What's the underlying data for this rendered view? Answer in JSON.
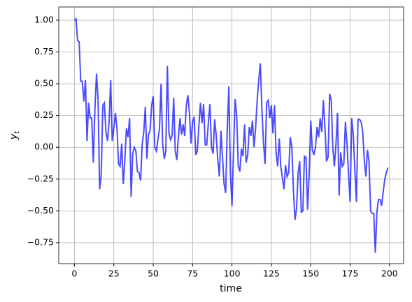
{
  "chart_data": {
    "type": "line",
    "xlabel": "time",
    "ylabel": "y_t",
    "x": [
      0,
      1,
      2,
      3,
      4,
      5,
      6,
      7,
      8,
      9,
      10,
      11,
      12,
      13,
      14,
      15,
      16,
      17,
      18,
      19,
      20,
      21,
      22,
      23,
      24,
      25,
      26,
      27,
      28,
      29,
      30,
      31,
      32,
      33,
      34,
      35,
      36,
      37,
      38,
      39,
      40,
      41,
      42,
      43,
      44,
      45,
      46,
      47,
      48,
      49,
      50,
      51,
      52,
      53,
      54,
      55,
      56,
      57,
      58,
      59,
      60,
      61,
      62,
      63,
      64,
      65,
      66,
      67,
      68,
      69,
      70,
      71,
      72,
      73,
      74,
      75,
      76,
      77,
      78,
      79,
      80,
      81,
      82,
      83,
      84,
      85,
      86,
      87,
      88,
      89,
      90,
      91,
      92,
      93,
      94,
      95,
      96,
      97,
      98,
      99,
      100,
      101,
      102,
      103,
      104,
      105,
      106,
      107,
      108,
      109,
      110,
      111,
      112,
      113,
      114,
      115,
      116,
      117,
      118,
      119,
      120,
      121,
      122,
      123,
      124,
      125,
      126,
      127,
      128,
      129,
      130,
      131,
      132,
      133,
      134,
      135,
      136,
      137,
      138,
      139,
      140,
      141,
      142,
      143,
      144,
      145,
      146,
      147,
      148,
      149,
      150,
      151,
      152,
      153,
      154,
      155,
      156,
      157,
      158,
      159,
      160,
      161,
      162,
      163,
      164,
      165,
      166,
      167,
      168,
      169,
      170,
      171,
      172,
      173,
      174,
      175,
      176,
      177,
      178,
      179,
      180,
      181,
      182,
      183,
      184,
      185,
      186,
      187,
      188,
      189,
      190,
      191,
      192,
      193,
      194,
      195,
      196,
      197,
      198,
      199
    ],
    "values": [
      1.0,
      1.01,
      0.84,
      0.83,
      0.52,
      0.52,
      0.36,
      0.53,
      0.05,
      0.35,
      0.23,
      0.23,
      -0.12,
      0.3,
      0.58,
      0.38,
      -0.33,
      -0.22,
      0.33,
      0.35,
      0.12,
      0.05,
      0.2,
      0.53,
      0.05,
      0.15,
      0.27,
      0.15,
      -0.13,
      -0.15,
      0.03,
      -0.29,
      -0.1,
      0.15,
      0.08,
      0.23,
      -0.39,
      -0.05,
      0.0,
      -0.03,
      -0.19,
      -0.2,
      -0.26,
      0.02,
      0.12,
      0.32,
      -0.09,
      0.1,
      0.13,
      0.33,
      0.4,
      0.0,
      -0.03,
      0.06,
      0.15,
      0.5,
      0.03,
      -0.09,
      -0.03,
      0.64,
      0.11,
      0.06,
      0.09,
      0.39,
      -0.03,
      -0.1,
      0.08,
      0.23,
      0.1,
      0.18,
      0.09,
      0.33,
      0.41,
      0.27,
      0.03,
      0.2,
      0.24,
      -0.06,
      -0.03,
      0.17,
      0.35,
      0.19,
      0.34,
      0.02,
      0.02,
      0.19,
      0.34,
      0.0,
      -0.05,
      0.22,
      0.09,
      -0.1,
      -0.23,
      0.13,
      -0.08,
      -0.29,
      -0.36,
      0.14,
      0.48,
      -0.2,
      -0.46,
      -0.03,
      0.38,
      0.25,
      -0.15,
      -0.19,
      -0.01,
      -0.07,
      0.18,
      -0.12,
      -0.06,
      0.16,
      0.09,
      0.21,
      0.0,
      0.15,
      0.37,
      0.53,
      0.66,
      0.3,
      0.04,
      -0.13,
      0.35,
      0.37,
      0.23,
      0.33,
      0.11,
      0.33,
      -0.04,
      -0.15,
      0.07,
      -0.15,
      -0.24,
      -0.33,
      -0.14,
      -0.23,
      -0.2,
      0.08,
      0.0,
      -0.33,
      -0.57,
      -0.48,
      -0.2,
      -0.11,
      -0.51,
      -0.5,
      -0.07,
      -0.08,
      -0.49,
      -0.21,
      0.21,
      -0.02,
      -0.06,
      0.0,
      0.16,
      0.08,
      0.23,
      0.12,
      0.37,
      0.16,
      -0.11,
      -0.08,
      0.42,
      0.37,
      0.0,
      -0.15,
      0.02,
      0.27,
      -0.38,
      -0.04,
      -0.15,
      -0.13,
      0.2,
      0.03,
      -0.21,
      -0.43,
      0.23,
      0.1,
      -0.18,
      -0.43,
      0.22,
      0.22,
      0.2,
      0.12,
      -0.1,
      -0.23,
      -0.02,
      -0.11,
      -0.5,
      -0.52,
      -0.52,
      -0.83,
      -0.51,
      -0.41,
      -0.41,
      -0.46,
      -0.35,
      -0.25,
      -0.2,
      -0.16
    ],
    "color": "#0000ff",
    "xlim": [
      -9.95,
      208.95
    ],
    "ylim": [
      -0.915,
      1.104
    ],
    "xticks": [
      0,
      25,
      50,
      75,
      100,
      125,
      150,
      175,
      200
    ],
    "yticks": [
      {
        "value": -0.75,
        "label": "−0.75"
      },
      {
        "value": -0.5,
        "label": "−0.50"
      },
      {
        "value": -0.25,
        "label": "−0.25"
      },
      {
        "value": 0,
        "label": "0.00"
      },
      {
        "value": 0.25,
        "label": "0.25"
      },
      {
        "value": 0.5,
        "label": "0.50"
      },
      {
        "value": 0.75,
        "label": "0.75"
      },
      {
        "value": 1,
        "label": "1.00"
      }
    ],
    "grid": true
  }
}
